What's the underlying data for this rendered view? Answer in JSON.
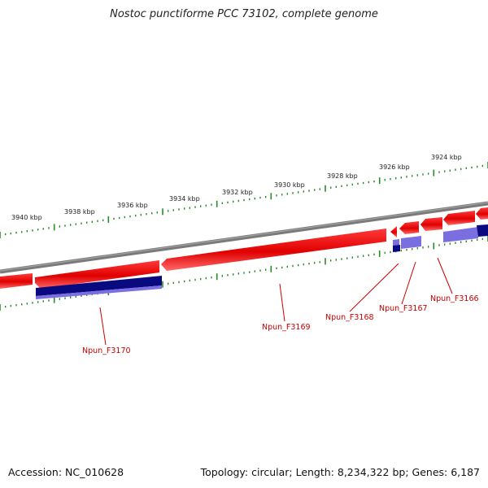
{
  "title": "Nostoc punctiforme PCC 73102, complete genome",
  "footer": {
    "accession": "Accession: NC_010628",
    "summary": "Topology: circular; Length: 8,234,322 bp; Genes: 6,187"
  },
  "ruler_labels": [
    "3940 kbp",
    "3938 kbp",
    "3936 kbp",
    "3934 kbp",
    "3932 kbp",
    "3930 kbp",
    "3928 kbp",
    "3926 kbp",
    "3924 kbp"
  ],
  "gene_labels": [
    "Npun_F3170",
    "Npun_F3169",
    "Npun_F3168",
    "Npun_F3167",
    "Npun_F3166"
  ],
  "colors": {
    "backbone": "#808080",
    "forward_gene": "#ee1111",
    "cds_dark": "#0a0a80",
    "cds_light": "#7a6ee0",
    "ruler_ticks": "#2a8a2a",
    "gene_label": "#cc0000"
  }
}
